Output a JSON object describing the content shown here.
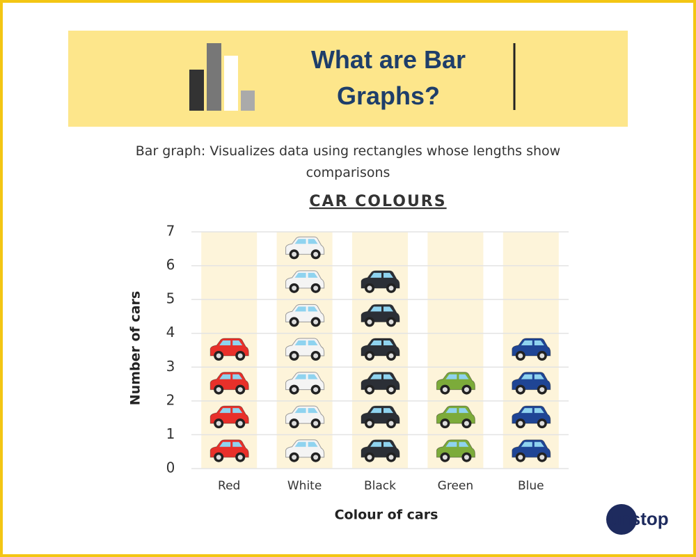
{
  "header": {
    "title": "What are Bar Graphs?"
  },
  "description": "Bar graph: Visualizes data using rectangles whose lengths show comparisons",
  "brand": "unstop",
  "chart_data": {
    "type": "bar",
    "title": "CAR COLOURS",
    "x_label": "Colour of cars",
    "y_label": "Number of cars",
    "categories": [
      "Red",
      "White",
      "Black",
      "Green",
      "Blue"
    ],
    "values": [
      4,
      7,
      6,
      3,
      4
    ],
    "colors": [
      "#e8302a",
      "#f4f4f4",
      "#2b2f36",
      "#7cab3a",
      "#1f4595"
    ],
    "ylim": [
      0,
      7
    ],
    "yticks": [
      0,
      1,
      2,
      3,
      4,
      5,
      6,
      7
    ],
    "grid": true
  }
}
